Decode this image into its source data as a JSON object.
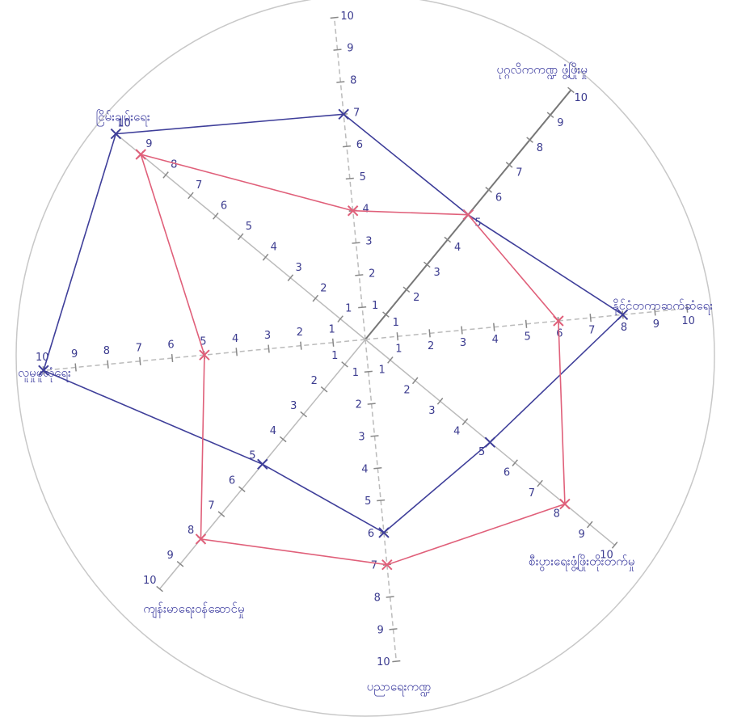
{
  "chart_data": {
    "type": "radar",
    "categories": [
      null,
      "ပုဂ္ဂလိကကဏ္ဍ ဖွံ့ဖြိုးမှု",
      "နိုင်ငံတကာဆက်ဆံရေး",
      "စီးပွားရေးဖွံ့ဖြိုးတိုးတက်မှု",
      "ပညာရေးကဏ္ဍ",
      "ကျန်းမာရေးဝန်ဆောင်မှု",
      "လူမှုဖူလုံရေး",
      "ငြိမ်းချမ်းရေး"
    ],
    "series": [
      {
        "name": null,
        "color": "#3f3f9a",
        "values": [
          7,
          5,
          8,
          5,
          6,
          5,
          10,
          10
        ]
      },
      {
        "name": null,
        "color": "#e0607a",
        "values": [
          4,
          5,
          6,
          8,
          7,
          8,
          5,
          9
        ]
      }
    ],
    "rlim": [
      0,
      10
    ],
    "rticks": [
      1,
      2,
      3,
      4,
      5,
      6,
      7,
      8,
      9,
      10
    ]
  }
}
